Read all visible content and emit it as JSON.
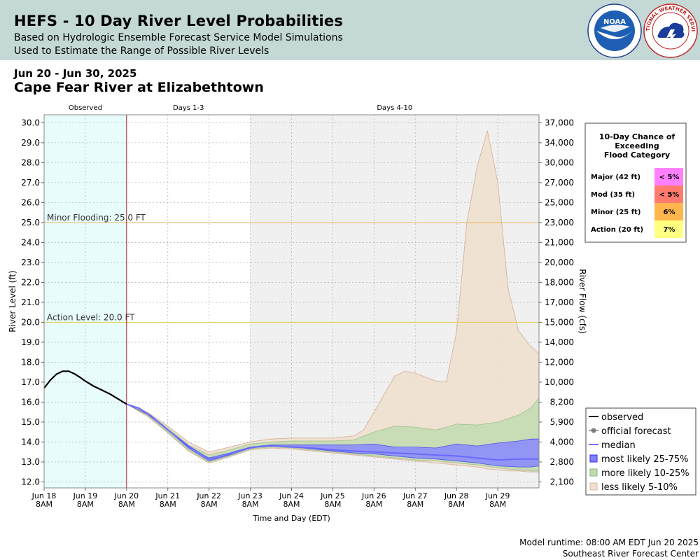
{
  "header": {
    "title": "HEFS - 10 Day River Level Probabilities",
    "subtitle1": "Based on Hydrologic Ensemble Forecast Service Model Simulations",
    "subtitle2": "Used to Estimate the Range of Possible River Levels",
    "noaa_logo_text": "NOAA",
    "nws_logo_text": "NATIONAL WEATHER SERVICE"
  },
  "date_range": "Jun 20 - Jun 30, 2025",
  "site_name": "Cape Fear River at Elizabethtown",
  "footer": {
    "runtime": "Model runtime: 08:00 AM EDT Jun 20 2025",
    "center": "Southeast River Forecast Center"
  },
  "exceedance_table": {
    "title_lines": [
      "10-Day Chance of",
      "Exceeding",
      "Flood Category"
    ],
    "rows": [
      {
        "label": "Major (42 ft)",
        "value": "< 5%",
        "color": "#ff80ff"
      },
      {
        "label": "Mod (35 ft)",
        "value": "< 5%",
        "color": "#ff7b6e"
      },
      {
        "label": "Minor (25 ft)",
        "value": "6%",
        "color": "#ffb74d"
      },
      {
        "label": "Action (20 ft)",
        "value": "7%",
        "color": "#ffff80"
      }
    ]
  },
  "chart_data": {
    "type": "area",
    "xlabel": "Time and Day (EDT)",
    "ylabel": "River Level (ft)",
    "y2label": "River Flow (cfs)",
    "ylim": [
      11.7,
      30.4
    ],
    "xlim": [
      0,
      12
    ],
    "yticks": [
      12.0,
      13.0,
      14.0,
      15.0,
      16.0,
      17.0,
      18.0,
      19.0,
      20.0,
      21.0,
      22.0,
      23.0,
      24.0,
      25.0,
      26.0,
      27.0,
      28.0,
      29.0,
      30.0
    ],
    "ytick_labels": [
      "12.0",
      "13.0",
      "14.0",
      "15.0",
      "16.0",
      "17.0",
      "18.0",
      "19.0",
      "20.0",
      "21.0",
      "22.0",
      "23.0",
      "24.0",
      "25.0",
      "26.0",
      "27.0",
      "28.0",
      "29.0",
      "30.0"
    ],
    "y2_ticks": [
      {
        "stage": 12.0,
        "label": "2,100"
      },
      {
        "stage": 13.0,
        "label": "2,800"
      },
      {
        "stage": 14.0,
        "label": "4,000"
      },
      {
        "stage": 15.0,
        "label": "5,900"
      },
      {
        "stage": 16.0,
        "label": "8,200"
      },
      {
        "stage": 17.0,
        "label": "10,000"
      },
      {
        "stage": 18.0,
        "label": "12,000"
      },
      {
        "stage": 19.0,
        "label": "14,000"
      },
      {
        "stage": 20.0,
        "label": "15,000"
      },
      {
        "stage": 21.0,
        "label": "17,000"
      },
      {
        "stage": 22.0,
        "label": "18,000"
      },
      {
        "stage": 23.0,
        "label": "20,000"
      },
      {
        "stage": 24.0,
        "label": "21,000"
      },
      {
        "stage": 25.0,
        "label": "23,000"
      },
      {
        "stage": 26.0,
        "label": "25,000"
      },
      {
        "stage": 27.0,
        "label": "27,000"
      },
      {
        "stage": 28.0,
        "label": "30,000"
      },
      {
        "stage": 29.0,
        "label": "34,000"
      },
      {
        "stage": 30.0,
        "label": "37,000"
      }
    ],
    "xticks": [
      {
        "x": 0,
        "label": "Jun 18",
        "time": "8AM"
      },
      {
        "x": 1,
        "label": "Jun 19",
        "time": "8AM"
      },
      {
        "x": 2,
        "label": "Jun 20",
        "time": "8AM"
      },
      {
        "x": 3,
        "label": "Jun 21",
        "time": "8AM"
      },
      {
        "x": 4,
        "label": "Jun 22",
        "time": "8AM"
      },
      {
        "x": 5,
        "label": "Jun 23",
        "time": "8AM"
      },
      {
        "x": 6,
        "label": "Jun 24",
        "time": "8AM"
      },
      {
        "x": 7,
        "label": "Jun 25",
        "time": "8AM"
      },
      {
        "x": 8,
        "label": "Jun 26",
        "time": "8AM"
      },
      {
        "x": 9,
        "label": "Jun 27",
        "time": "8AM"
      },
      {
        "x": 10,
        "label": "Jun 28",
        "time": "8AM"
      },
      {
        "x": 11,
        "label": "Jun 29",
        "time": "8AM"
      }
    ],
    "periods": [
      {
        "label": "Observed",
        "x0": 0,
        "x1": 2,
        "color": "#e8fcfc"
      },
      {
        "label": "Days 1-3",
        "x0": 2,
        "x1": 5,
        "color": "#ffffff"
      },
      {
        "label": "Days 4-10",
        "x0": 5,
        "x1": 12,
        "color": "#f0f0f0"
      }
    ],
    "forecast_start_x": 2,
    "thresholds": [
      {
        "label": "Minor Flooding: 25.0 FT",
        "stage": 25.0,
        "color": "#e8c070"
      },
      {
        "label": "Action Level: 20.0 FT",
        "stage": 20.0,
        "color": "#e0d060"
      }
    ],
    "observed": {
      "x": [
        0,
        0.15,
        0.3,
        0.45,
        0.6,
        0.75,
        0.9,
        1.0,
        1.2,
        1.4,
        1.6,
        1.8,
        2.0
      ],
      "y": [
        16.7,
        17.1,
        17.4,
        17.55,
        17.55,
        17.4,
        17.2,
        17.05,
        16.8,
        16.6,
        16.4,
        16.15,
        15.9
      ]
    },
    "median": {
      "x": [
        2.0,
        2.3,
        2.6,
        3.0,
        3.5,
        4.0,
        4.3,
        4.6,
        5.0,
        5.3,
        5.6,
        6.0,
        6.5,
        7.0,
        7.5,
        8.0,
        8.5,
        9.0,
        9.5,
        10.0,
        10.5,
        11.0,
        11.5,
        12.0
      ],
      "y": [
        15.9,
        15.7,
        15.3,
        14.6,
        13.8,
        13.15,
        13.25,
        13.5,
        13.7,
        13.8,
        13.8,
        13.75,
        13.7,
        13.6,
        13.55,
        13.5,
        13.45,
        13.4,
        13.35,
        13.3,
        13.2,
        13.1,
        13.15,
        13.15
      ]
    },
    "band_25_75": {
      "x": [
        2.0,
        2.5,
        3.0,
        3.5,
        4.0,
        4.5,
        5.0,
        5.5,
        6.0,
        6.5,
        7.0,
        7.5,
        8.0,
        8.5,
        9.0,
        9.5,
        10.0,
        10.5,
        11.0,
        11.5,
        11.8,
        12.0
      ],
      "lower": [
        15.9,
        15.4,
        14.6,
        13.7,
        13.05,
        13.35,
        13.7,
        13.8,
        13.75,
        13.65,
        13.55,
        13.45,
        13.4,
        13.3,
        13.2,
        13.15,
        13.05,
        12.95,
        12.8,
        12.75,
        12.75,
        12.8
      ],
      "upper": [
        15.9,
        15.4,
        14.6,
        13.75,
        13.2,
        13.45,
        13.75,
        13.85,
        13.85,
        13.85,
        13.85,
        13.85,
        13.9,
        13.75,
        13.75,
        13.7,
        13.9,
        13.8,
        13.95,
        14.05,
        14.15,
        14.15
      ]
    },
    "band_10_25": {
      "x": [
        2.0,
        2.5,
        3.0,
        3.5,
        4.0,
        4.5,
        5.0,
        5.5,
        6.0,
        6.5,
        7.0,
        7.5,
        8.0,
        8.5,
        9.0,
        9.5,
        10.0,
        10.5,
        11.0,
        11.5,
        11.8,
        12.0
      ],
      "lower": [
        15.9,
        15.35,
        14.5,
        13.6,
        13.0,
        13.3,
        13.65,
        13.75,
        13.7,
        13.6,
        13.5,
        13.4,
        13.3,
        13.2,
        13.1,
        13.05,
        12.95,
        12.85,
        12.7,
        12.6,
        12.55,
        12.55
      ],
      "upper": [
        15.9,
        15.45,
        14.7,
        13.85,
        13.35,
        13.6,
        13.9,
        14.0,
        14.05,
        14.05,
        14.05,
        14.1,
        14.5,
        14.8,
        14.75,
        14.6,
        14.9,
        14.85,
        15.0,
        15.35,
        15.7,
        16.2
      ]
    },
    "band_5_10": {
      "x": [
        2.0,
        2.5,
        3.0,
        3.5,
        4.0,
        4.5,
        5.0,
        5.5,
        6.0,
        6.5,
        7.0,
        7.5,
        7.75,
        8.0,
        8.25,
        8.5,
        8.75,
        9.0,
        9.25,
        9.5,
        9.75,
        10.0,
        10.25,
        10.5,
        10.75,
        11.0,
        11.25,
        11.5,
        11.75,
        12.0
      ],
      "lower": [
        15.9,
        15.3,
        14.45,
        13.55,
        12.95,
        13.25,
        13.6,
        13.7,
        13.65,
        13.55,
        13.45,
        13.35,
        13.3,
        13.25,
        13.2,
        13.15,
        13.1,
        13.05,
        13.0,
        12.95,
        12.9,
        12.85,
        12.8,
        12.75,
        12.65,
        12.6,
        12.55,
        12.55,
        12.5,
        12.5
      ],
      "upper": [
        15.9,
        15.5,
        14.8,
        14.0,
        13.5,
        13.75,
        14.0,
        14.15,
        14.2,
        14.2,
        14.2,
        14.3,
        14.6,
        15.5,
        16.4,
        17.3,
        17.55,
        17.45,
        17.25,
        17.05,
        17.0,
        19.5,
        25.0,
        27.8,
        29.6,
        27.0,
        21.7,
        19.6,
        18.9,
        18.4
      ]
    },
    "legend": [
      {
        "label": "observed",
        "kind": "line",
        "color": "#000000"
      },
      {
        "label": "official forecast",
        "kind": "dotline",
        "color": "#808080"
      },
      {
        "label": "median",
        "kind": "line",
        "color": "#7070ff"
      },
      {
        "label": "most likely 25-75%",
        "kind": "box",
        "color": "#8080ff",
        "stroke": "#3030e0"
      },
      {
        "label": "more likely 10-25%",
        "kind": "box",
        "color": "#c0dcb0",
        "stroke": "#90b080"
      },
      {
        "label": "less likely 5-10%",
        "kind": "box",
        "color": "#f0e0d0",
        "stroke": "#d8b8a0"
      }
    ]
  }
}
